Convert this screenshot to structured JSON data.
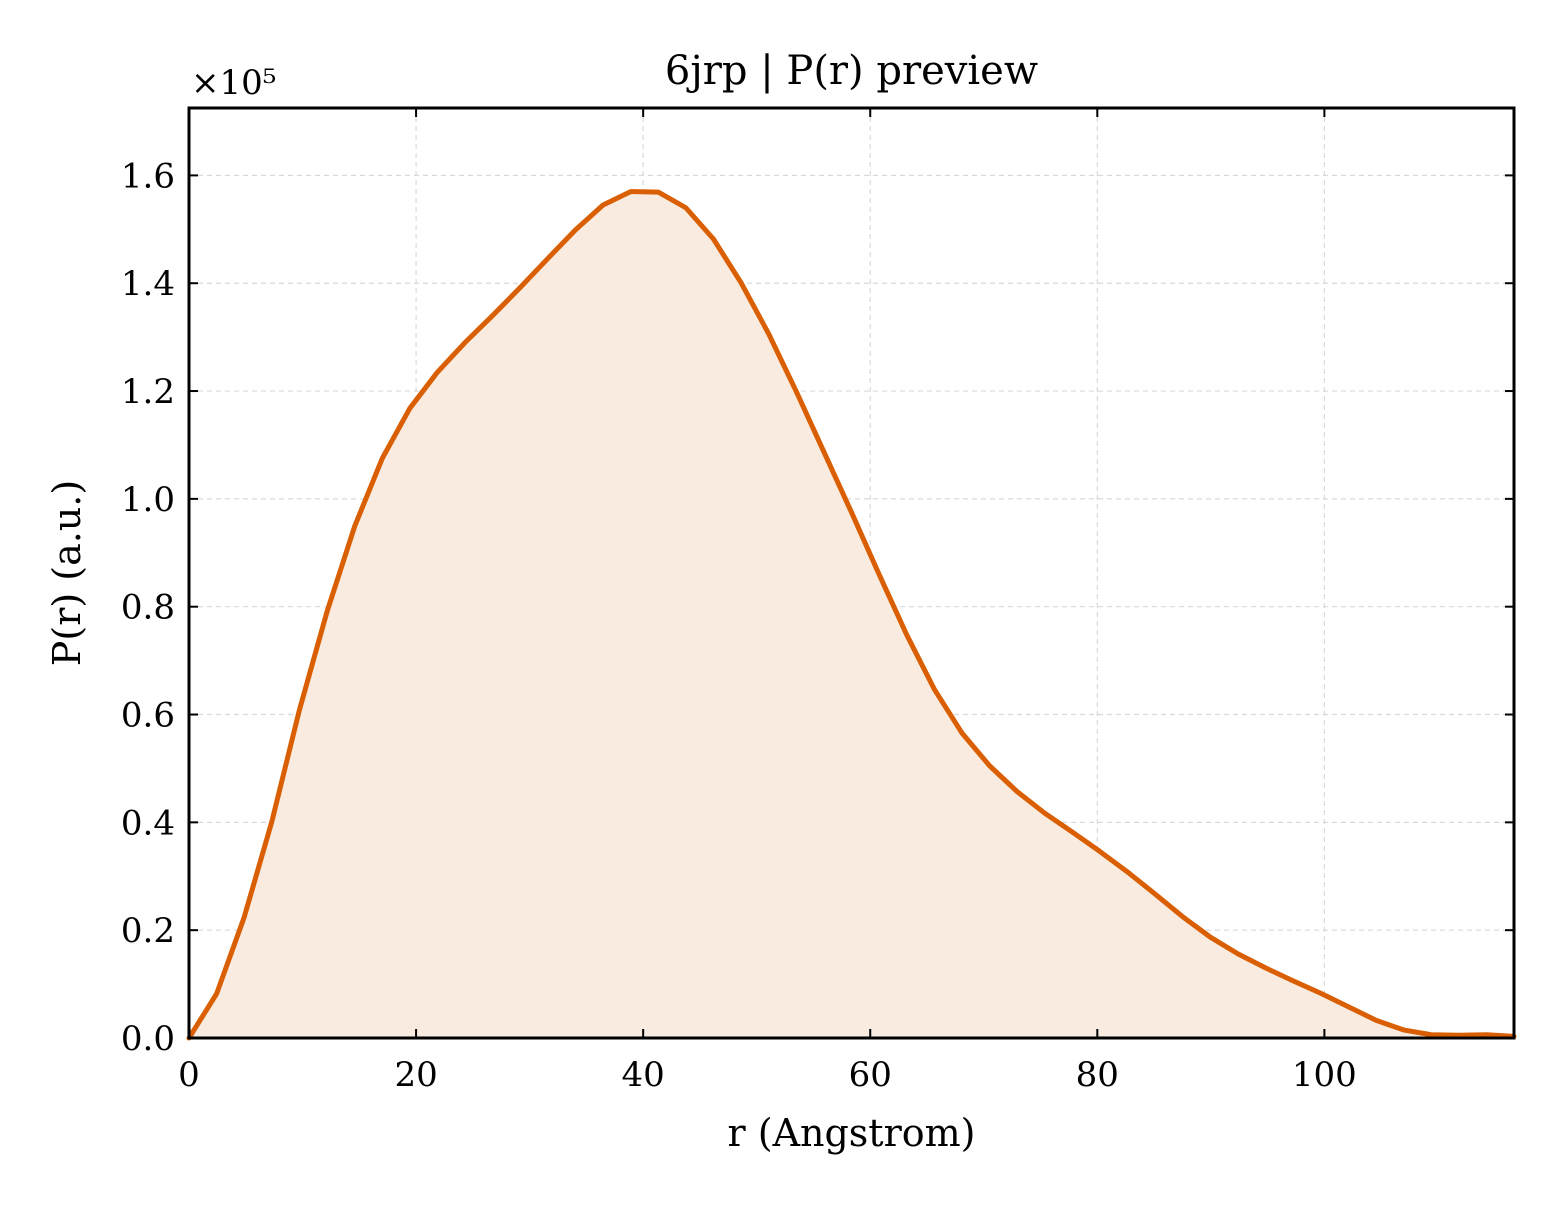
{
  "chart_data": {
    "type": "area",
    "title": "6jrp | P(r) preview",
    "xlabel": "r (Angstrom)",
    "ylabel": "P(r) (a.u.)",
    "y_scale_note": "×10⁵",
    "xlim": [
      0,
      116.7
    ],
    "ylim": [
      0,
      1.725
    ],
    "xticks": [
      0,
      20,
      40,
      60,
      80,
      100
    ],
    "xtick_labels": [
      "0",
      "20",
      "40",
      "60",
      "80",
      "100"
    ],
    "yticks": [
      0.0,
      0.2,
      0.4,
      0.6,
      0.8,
      1.0,
      1.2,
      1.4,
      1.6
    ],
    "ytick_labels": [
      "0.0",
      "0.2",
      "0.4",
      "0.6",
      "0.8",
      "1.0",
      "1.2",
      "1.4",
      "1.6"
    ],
    "grid": true,
    "line_color": "#d95f02",
    "fill_color": "#f9ebe0",
    "series": [
      {
        "x": [
          0,
          2.43,
          4.86,
          7.29,
          9.72,
          12.16,
          14.59,
          17.02,
          19.45,
          21.88,
          24.31,
          26.74,
          29.17,
          31.61,
          34.04,
          36.47,
          38.9,
          41.33,
          43.76,
          46.19,
          48.62,
          51.06,
          53.49,
          55.92,
          58.35,
          60.78,
          63.21,
          65.64,
          68.07,
          70.51,
          72.94,
          75.37,
          77.8,
          80.23,
          82.66,
          85.09,
          87.52,
          89.96,
          92.39,
          94.82,
          97.25,
          99.68,
          102.11,
          104.54,
          106.97,
          109.41,
          111.84,
          114.27,
          116.7
        ],
        "y": [
          0.0,
          0.082,
          0.224,
          0.401,
          0.608,
          0.791,
          0.949,
          1.075,
          1.168,
          1.235,
          1.29,
          1.34,
          1.392,
          1.446,
          1.499,
          1.545,
          1.57,
          1.569,
          1.54,
          1.482,
          1.401,
          1.306,
          1.199,
          1.087,
          0.975,
          0.86,
          0.748,
          0.647,
          0.566,
          0.505,
          0.457,
          0.417,
          0.382,
          0.346,
          0.308,
          0.267,
          0.225,
          0.187,
          0.156,
          0.13,
          0.106,
          0.083,
          0.058,
          0.033,
          0.015,
          0.006,
          0.005,
          0.006,
          0.003
        ]
      }
    ]
  }
}
